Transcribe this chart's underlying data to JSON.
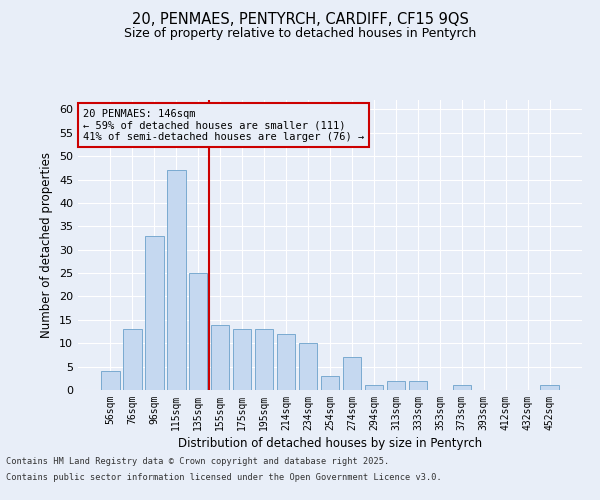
{
  "title_line1": "20, PENMAES, PENTYRCH, CARDIFF, CF15 9QS",
  "title_line2": "Size of property relative to detached houses in Pentyrch",
  "xlabel": "Distribution of detached houses by size in Pentyrch",
  "ylabel": "Number of detached properties",
  "footer_line1": "Contains HM Land Registry data © Crown copyright and database right 2025.",
  "footer_line2": "Contains public sector information licensed under the Open Government Licence v3.0.",
  "categories": [
    "56sqm",
    "76sqm",
    "96sqm",
    "115sqm",
    "135sqm",
    "155sqm",
    "175sqm",
    "195sqm",
    "214sqm",
    "234sqm",
    "254sqm",
    "274sqm",
    "294sqm",
    "313sqm",
    "333sqm",
    "353sqm",
    "373sqm",
    "393sqm",
    "412sqm",
    "432sqm",
    "452sqm"
  ],
  "values": [
    4,
    13,
    33,
    47,
    25,
    14,
    13,
    13,
    12,
    10,
    3,
    7,
    1,
    2,
    2,
    0,
    1,
    0,
    0,
    0,
    1
  ],
  "bar_color": "#c5d8f0",
  "bar_edge_color": "#7aaad0",
  "background_color": "#e8eef8",
  "grid_color": "#ffffff",
  "vline_x": 4.5,
  "vline_color": "#cc0000",
  "annotation_text": "20 PENMAES: 146sqm\n← 59% of detached houses are smaller (111)\n41% of semi-detached houses are larger (76) →",
  "annotation_box_color": "#cc0000",
  "ylim": [
    0,
    62
  ],
  "yticks": [
    0,
    5,
    10,
    15,
    20,
    25,
    30,
    35,
    40,
    45,
    50,
    55,
    60
  ]
}
